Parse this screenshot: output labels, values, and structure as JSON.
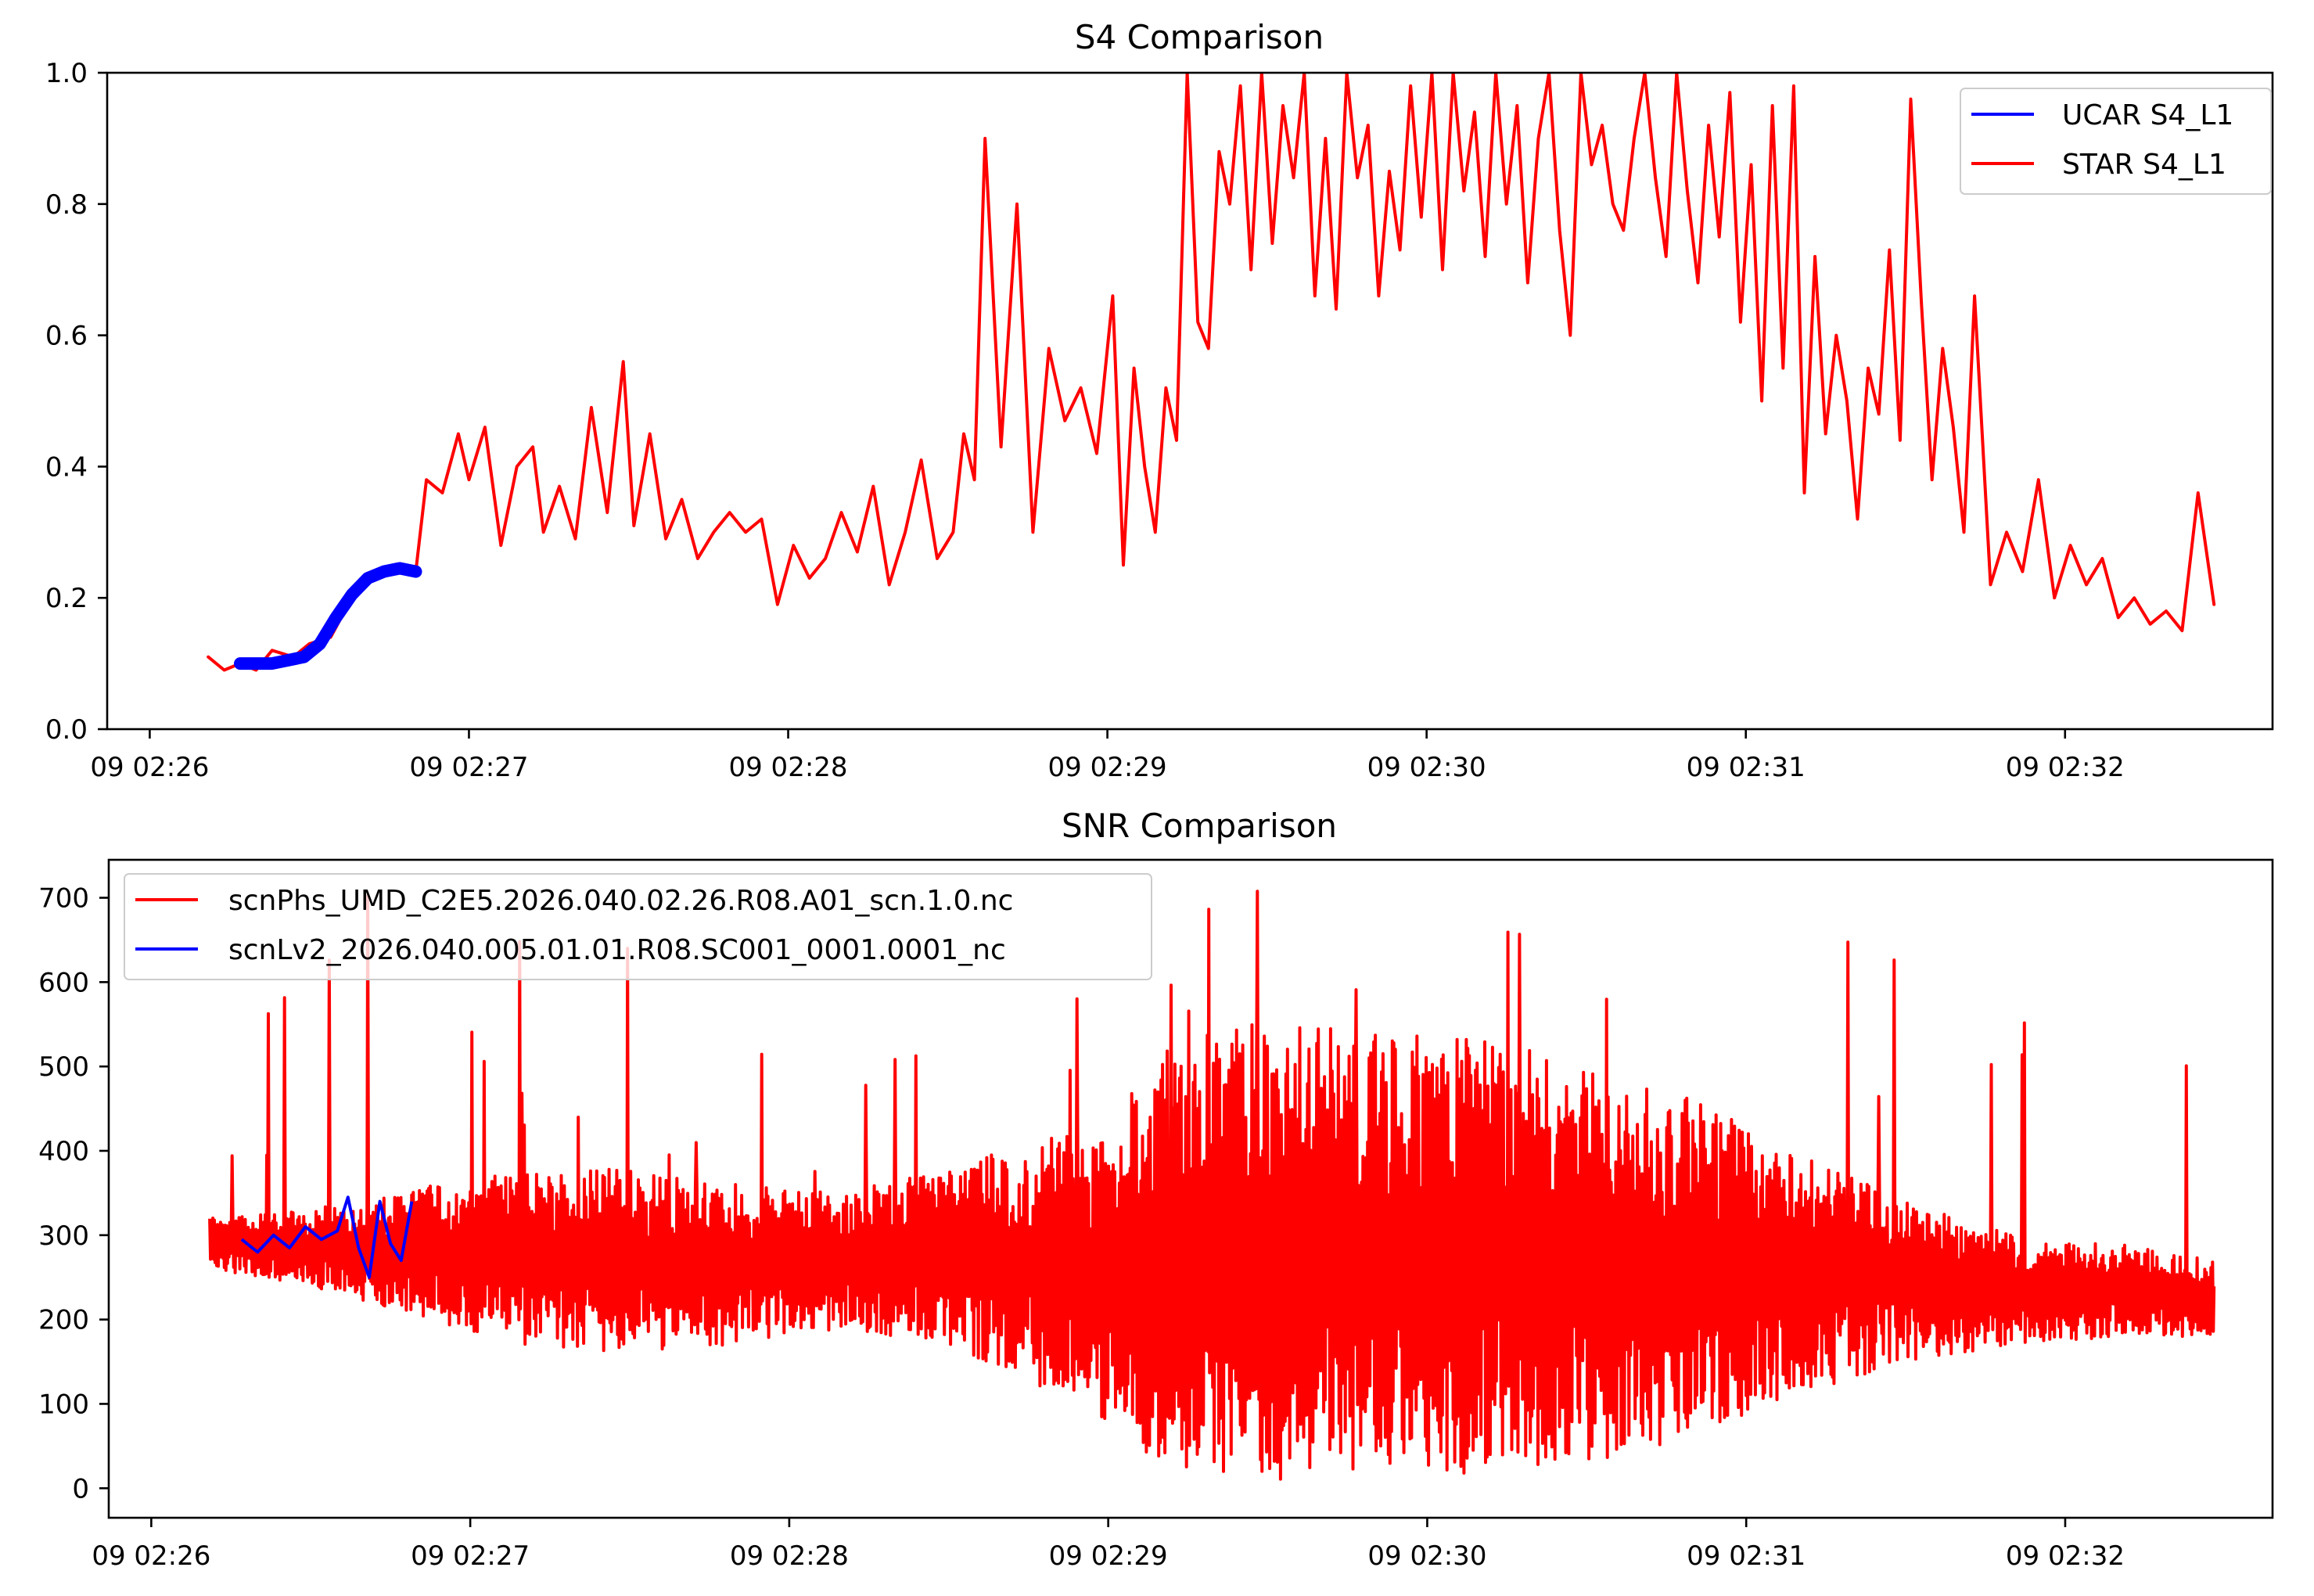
{
  "chart_data": [
    {
      "type": "line",
      "title": "S4 Comparison",
      "xlabel": "",
      "ylabel": "",
      "x_ticks": [
        "09 02:26",
        "09 02:27",
        "09 02:28",
        "09 02:29",
        "09 02:30",
        "09 02:31",
        "09 02:32"
      ],
      "y_ticks": [
        "0.0",
        "0.2",
        "0.4",
        "0.6",
        "0.8",
        "1.0"
      ],
      "xlim": [
        "02:25:52",
        "02:32:39"
      ],
      "ylim": [
        0,
        1.0
      ],
      "grid": false,
      "legend_position": "upper right",
      "series": [
        {
          "name": "UCAR S4_L1",
          "color": "#0000ff",
          "x": [
            "02:26:17",
            "02:26:20",
            "02:26:23",
            "02:26:26",
            "02:26:29",
            "02:26:32",
            "02:26:35",
            "02:26:38",
            "02:26:41",
            "02:26:44",
            "02:26:47",
            "02:26:50"
          ],
          "y": [
            0.1,
            0.1,
            0.1,
            0.105,
            0.11,
            0.13,
            0.17,
            0.205,
            0.23,
            0.24,
            0.245,
            0.24
          ]
        },
        {
          "name": "STAR S4_L1",
          "color": "#ff0000",
          "x": [
            "02:26:11",
            "02:26:14",
            "02:26:17",
            "02:26:20",
            "02:26:23",
            "02:26:27",
            "02:26:30",
            "02:26:34",
            "02:26:38",
            "02:26:42",
            "02:26:46",
            "02:26:50",
            "02:26:52",
            "02:26:55",
            "02:26:58",
            "02:27:00",
            "02:27:03",
            "02:27:06",
            "02:27:09",
            "02:27:12",
            "02:27:14",
            "02:27:17",
            "02:27:20",
            "02:27:23",
            "02:27:26",
            "02:27:29",
            "02:27:31",
            "02:27:34",
            "02:27:37",
            "02:27:40",
            "02:27:43",
            "02:27:46",
            "02:27:49",
            "02:27:52",
            "02:27:55",
            "02:27:58",
            "02:28:01",
            "02:28:04",
            "02:28:07",
            "02:28:10",
            "02:28:13",
            "02:28:16",
            "02:28:19",
            "02:28:22",
            "02:28:25",
            "02:28:28",
            "02:28:31",
            "02:28:33",
            "02:28:35",
            "02:28:37",
            "02:28:40",
            "02:28:43",
            "02:28:46",
            "02:28:49",
            "02:28:52",
            "02:28:55",
            "02:28:58",
            "02:29:01",
            "02:29:03",
            "02:29:05",
            "02:29:07",
            "02:29:09",
            "02:29:11",
            "02:29:13",
            "02:29:15",
            "02:29:17",
            "02:29:19",
            "02:29:21",
            "02:29:23",
            "02:29:25",
            "02:29:27",
            "02:29:29",
            "02:29:31",
            "02:29:33",
            "02:29:35",
            "02:29:37",
            "02:29:39",
            "02:29:41",
            "02:29:43",
            "02:29:45",
            "02:29:47",
            "02:29:49",
            "02:29:51",
            "02:29:53",
            "02:29:55",
            "02:29:57",
            "02:29:59",
            "02:30:01",
            "02:30:03",
            "02:30:05",
            "02:30:07",
            "02:30:09",
            "02:30:11",
            "02:30:13",
            "02:30:15",
            "02:30:17",
            "02:30:19",
            "02:30:21",
            "02:30:23",
            "02:30:25",
            "02:30:27",
            "02:30:29",
            "02:30:31",
            "02:30:33",
            "02:30:35",
            "02:30:37",
            "02:30:39",
            "02:30:41",
            "02:30:43",
            "02:30:45",
            "02:30:47",
            "02:30:49",
            "02:30:51",
            "02:30:53",
            "02:30:55",
            "02:30:57",
            "02:30:59",
            "02:31:01",
            "02:31:03",
            "02:31:05",
            "02:31:07",
            "02:31:09",
            "02:31:11",
            "02:31:13",
            "02:31:15",
            "02:31:17",
            "02:31:19",
            "02:31:21",
            "02:31:23",
            "02:31:25",
            "02:31:27",
            "02:31:29",
            "02:31:31",
            "02:31:33",
            "02:31:35",
            "02:31:37",
            "02:31:39",
            "02:31:41",
            "02:31:43",
            "02:31:46",
            "02:31:49",
            "02:31:52",
            "02:31:55",
            "02:31:58",
            "02:32:01",
            "02:32:04",
            "02:32:07",
            "02:32:10",
            "02:32:13",
            "02:32:16",
            "02:32:19",
            "02:32:22",
            "02:32:25",
            "02:32:28"
          ],
          "y": [
            0.11,
            0.09,
            0.1,
            0.09,
            0.12,
            0.11,
            0.13,
            0.14,
            0.2,
            0.23,
            0.25,
            0.24,
            0.38,
            0.36,
            0.45,
            0.38,
            0.46,
            0.28,
            0.4,
            0.43,
            0.3,
            0.37,
            0.29,
            0.49,
            0.33,
            0.56,
            0.31,
            0.45,
            0.29,
            0.35,
            0.26,
            0.3,
            0.33,
            0.3,
            0.32,
            0.19,
            0.28,
            0.23,
            0.26,
            0.33,
            0.27,
            0.37,
            0.22,
            0.3,
            0.41,
            0.26,
            0.3,
            0.45,
            0.38,
            0.9,
            0.43,
            0.8,
            0.3,
            0.58,
            0.47,
            0.52,
            0.42,
            0.66,
            0.25,
            0.55,
            0.4,
            0.3,
            0.52,
            0.44,
            1.0,
            0.62,
            0.58,
            0.88,
            0.8,
            0.98,
            0.7,
            1.0,
            0.74,
            0.95,
            0.84,
            1.0,
            0.66,
            0.9,
            0.64,
            1.0,
            0.84,
            0.92,
            0.66,
            0.85,
            0.73,
            0.98,
            0.78,
            1.0,
            0.7,
            1.0,
            0.82,
            0.94,
            0.72,
            1.0,
            0.8,
            0.95,
            0.68,
            0.9,
            1.0,
            0.76,
            0.6,
            1.0,
            0.86,
            0.92,
            0.8,
            0.76,
            0.9,
            1.0,
            0.84,
            0.72,
            1.0,
            0.82,
            0.68,
            0.92,
            0.75,
            0.97,
            0.62,
            0.86,
            0.5,
            0.95,
            0.55,
            0.98,
            0.36,
            0.72,
            0.45,
            0.6,
            0.5,
            0.32,
            0.55,
            0.48,
            0.73,
            0.44,
            0.96,
            0.65,
            0.38,
            0.58,
            0.46,
            0.3,
            0.66,
            0.22,
            0.3,
            0.24,
            0.38,
            0.2,
            0.28,
            0.22,
            0.26,
            0.17,
            0.2,
            0.16,
            0.18,
            0.15,
            0.36,
            0.19
          ]
        }
      ]
    },
    {
      "type": "line",
      "title": "SNR Comparison",
      "xlabel": "",
      "ylabel": "",
      "x_ticks": [
        "09 02:26",
        "09 02:27",
        "09 02:28",
        "09 02:29",
        "09 02:30",
        "09 02:31",
        "09 02:32"
      ],
      "y_ticks": [
        "0",
        "100",
        "200",
        "300",
        "400",
        "500",
        "600",
        "700"
      ],
      "xlim": [
        "02:25:52",
        "02:32:39"
      ],
      "ylim": [
        -35,
        745
      ],
      "grid": false,
      "legend_position": "upper left",
      "series": [
        {
          "name": "scnPhs_UMD_C2E5.2026.040.02.26.R08.A01_scn.1.0.nc",
          "color": "#ff0000",
          "x": [
            "02:26:11",
            "02:26:30",
            "02:26:52",
            "02:27:10",
            "02:27:30",
            "02:27:50",
            "02:28:10",
            "02:28:30",
            "02:28:50",
            "02:29:00",
            "02:29:10",
            "02:29:30",
            "02:29:50",
            "02:30:10",
            "02:30:30",
            "02:30:50",
            "02:31:10",
            "02:31:30",
            "02:31:50",
            "02:32:10",
            "02:32:28"
          ],
          "y_upper": [
            320,
            330,
            360,
            380,
            380,
            360,
            350,
            380,
            420,
            410,
            520,
            560,
            540,
            540,
            500,
            460,
            400,
            340,
            300,
            290,
            270
          ],
          "y_lower": [
            260,
            240,
            200,
            170,
            160,
            170,
            190,
            170,
            110,
            80,
            20,
            10,
            10,
            10,
            30,
            60,
            110,
            150,
            170,
            180,
            180
          ],
          "y_peak": 710
        },
        {
          "name": "scnLv2_2026.040.005.01.01.R08.SC001_0001.0001_nc",
          "color": "#0000ff",
          "x": [
            "02:26:17",
            "02:26:20",
            "02:26:23",
            "02:26:26",
            "02:26:29",
            "02:26:32",
            "02:26:35",
            "02:26:37",
            "02:26:39",
            "02:26:41",
            "02:26:43",
            "02:26:45",
            "02:26:47",
            "02:26:49"
          ],
          "y": [
            295,
            280,
            300,
            285,
            310,
            295,
            305,
            345,
            285,
            250,
            340,
            290,
            270,
            340
          ]
        }
      ]
    }
  ]
}
